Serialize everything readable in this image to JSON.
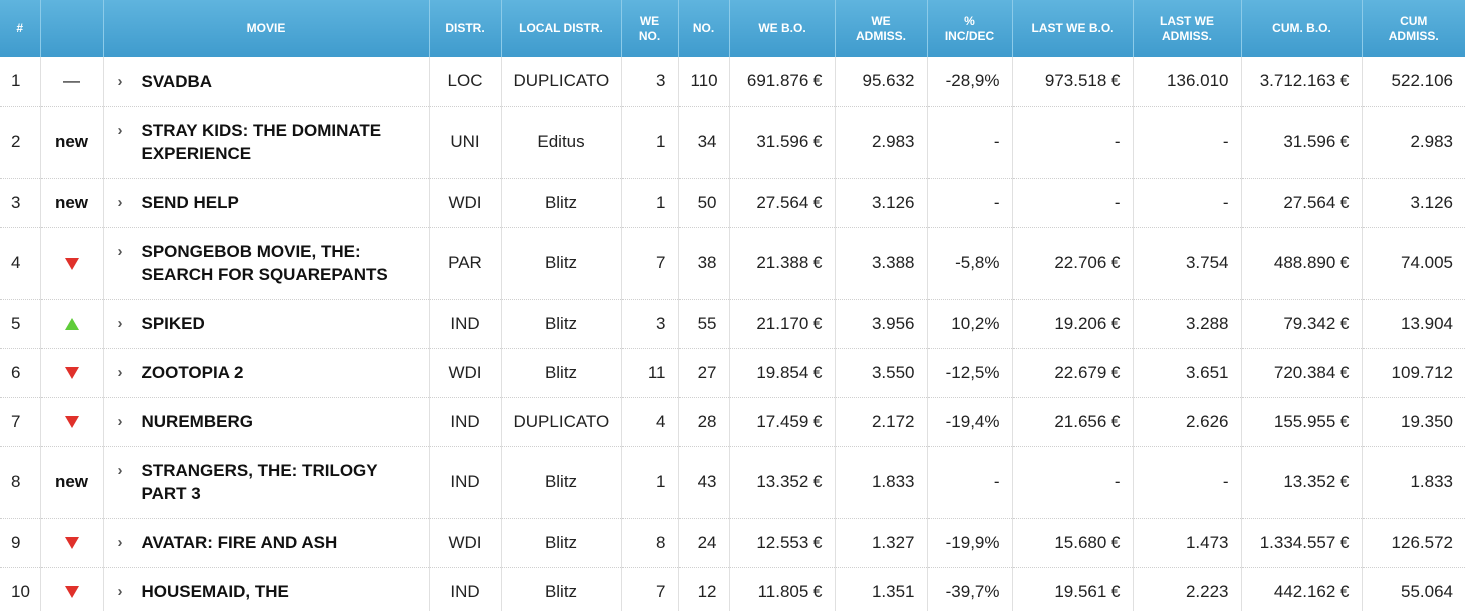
{
  "colors": {
    "header_bg": "#4aa6d6",
    "header_text": "#ffffff",
    "up": "#5fcc3a",
    "down": "#e0312b"
  },
  "columns": {
    "rank": "#",
    "trend": "",
    "movie": "MOVIE",
    "distr": "DISTR.",
    "local_distr": "LOCAL DISTR.",
    "we_no_1": "WE",
    "we_no_2": "NO.",
    "no": "NO.",
    "we_bo": "WE B.O.",
    "we_adm_1": "WE",
    "we_adm_2": "ADMISS.",
    "inc_1": "%",
    "inc_2": "INC/DEC",
    "last_we_bo": "LAST WE B.O.",
    "last_adm_1": "LAST WE",
    "last_adm_2": "ADMISS.",
    "cum_bo": "CUM. B.O.",
    "cum_adm_1": "CUM",
    "cum_adm_2": "ADMISS."
  },
  "rows": [
    {
      "rank": "1",
      "trend": "same",
      "trend_text": "—",
      "chevron": "›",
      "title": "SVADBA",
      "distr": "LOC",
      "local": "DUPLICATO",
      "weno": "3",
      "no": "110",
      "webo": "691.876 €",
      "weadm": "95.632",
      "inc": "-28,9%",
      "lastbo": "973.518 €",
      "lastadm": "136.010",
      "cumbo": "3.712.163 €",
      "cumadm": "522.106"
    },
    {
      "rank": "2",
      "trend": "new",
      "trend_text": "new",
      "chevron": "›",
      "title": "STRAY KIDS: THE DOMINATE EXPERIENCE",
      "distr": "UNI",
      "local": "Editus",
      "weno": "1",
      "no": "34",
      "webo": "31.596 €",
      "weadm": "2.983",
      "inc": "-",
      "lastbo": "-",
      "lastadm": "-",
      "cumbo": "31.596 €",
      "cumadm": "2.983"
    },
    {
      "rank": "3",
      "trend": "new",
      "trend_text": "new",
      "chevron": "›",
      "title": "SEND HELP",
      "distr": "WDI",
      "local": "Blitz",
      "weno": "1",
      "no": "50",
      "webo": "27.564 €",
      "weadm": "3.126",
      "inc": "-",
      "lastbo": "-",
      "lastadm": "-",
      "cumbo": "27.564 €",
      "cumadm": "3.126"
    },
    {
      "rank": "4",
      "trend": "down",
      "trend_text": "",
      "chevron": "›",
      "title": "SPONGEBOB MOVIE, THE: SEARCH FOR SQUAREPANTS",
      "distr": "PAR",
      "local": "Blitz",
      "weno": "7",
      "no": "38",
      "webo": "21.388 €",
      "weadm": "3.388",
      "inc": "-5,8%",
      "lastbo": "22.706 €",
      "lastadm": "3.754",
      "cumbo": "488.890 €",
      "cumadm": "74.005"
    },
    {
      "rank": "5",
      "trend": "up",
      "trend_text": "",
      "chevron": "›",
      "title": "SPIKED",
      "distr": "IND",
      "local": "Blitz",
      "weno": "3",
      "no": "55",
      "webo": "21.170 €",
      "weadm": "3.956",
      "inc": "10,2%",
      "lastbo": "19.206 €",
      "lastadm": "3.288",
      "cumbo": "79.342 €",
      "cumadm": "13.904"
    },
    {
      "rank": "6",
      "trend": "down",
      "trend_text": "",
      "chevron": "›",
      "title": "ZOOTOPIA 2",
      "distr": "WDI",
      "local": "Blitz",
      "weno": "11",
      "no": "27",
      "webo": "19.854 €",
      "weadm": "3.550",
      "inc": "-12,5%",
      "lastbo": "22.679 €",
      "lastadm": "3.651",
      "cumbo": "720.384 €",
      "cumadm": "109.712"
    },
    {
      "rank": "7",
      "trend": "down",
      "trend_text": "",
      "chevron": "›",
      "title": "NUREMBERG",
      "distr": "IND",
      "local": "DUPLICATO",
      "weno": "4",
      "no": "28",
      "webo": "17.459 €",
      "weadm": "2.172",
      "inc": "-19,4%",
      "lastbo": "21.656 €",
      "lastadm": "2.626",
      "cumbo": "155.955 €",
      "cumadm": "19.350"
    },
    {
      "rank": "8",
      "trend": "new",
      "trend_text": "new",
      "chevron": "›",
      "title": "STRANGERS, THE: TRILOGY PART 3",
      "distr": "IND",
      "local": "Blitz",
      "weno": "1",
      "no": "43",
      "webo": "13.352 €",
      "weadm": "1.833",
      "inc": "-",
      "lastbo": "-",
      "lastadm": "-",
      "cumbo": "13.352 €",
      "cumadm": "1.833"
    },
    {
      "rank": "9",
      "trend": "down",
      "trend_text": "",
      "chevron": "›",
      "title": "AVATAR: FIRE AND ASH",
      "distr": "WDI",
      "local": "Blitz",
      "weno": "8",
      "no": "24",
      "webo": "12.553 €",
      "weadm": "1.327",
      "inc": "-19,9%",
      "lastbo": "15.680 €",
      "lastadm": "1.473",
      "cumbo": "1.334.557 €",
      "cumadm": "126.572"
    },
    {
      "rank": "10",
      "trend": "down",
      "trend_text": "",
      "chevron": "›",
      "title": "HOUSEMAID, THE",
      "distr": "IND",
      "local": "Blitz",
      "weno": "7",
      "no": "12",
      "webo": "11.805 €",
      "weadm": "1.351",
      "inc": "-39,7%",
      "lastbo": "19.561 €",
      "lastadm": "2.223",
      "cumbo": "442.162 €",
      "cumadm": "55.064"
    }
  ]
}
